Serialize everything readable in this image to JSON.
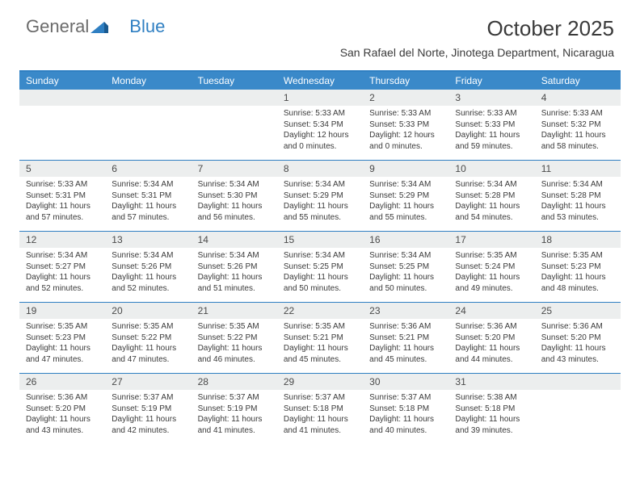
{
  "brand": {
    "part1": "General",
    "part2": "Blue"
  },
  "title": "October 2025",
  "location": "San Rafael del Norte, Jinotega Department, Nicaragua",
  "colors": {
    "accent": "#2f7fc2",
    "header_row": "#3a89c9",
    "day_head_bg": "#eceeee",
    "text": "#3a3a3a",
    "logo_gray": "#6b6b6b"
  },
  "dow": [
    "Sunday",
    "Monday",
    "Tuesday",
    "Wednesday",
    "Thursday",
    "Friday",
    "Saturday"
  ],
  "weeks": [
    [
      null,
      null,
      null,
      {
        "n": "1",
        "sr": "5:33 AM",
        "ss": "5:34 PM",
        "dl": "12 hours and 0 minutes."
      },
      {
        "n": "2",
        "sr": "5:33 AM",
        "ss": "5:33 PM",
        "dl": "12 hours and 0 minutes."
      },
      {
        "n": "3",
        "sr": "5:33 AM",
        "ss": "5:33 PM",
        "dl": "11 hours and 59 minutes."
      },
      {
        "n": "4",
        "sr": "5:33 AM",
        "ss": "5:32 PM",
        "dl": "11 hours and 58 minutes."
      }
    ],
    [
      {
        "n": "5",
        "sr": "5:33 AM",
        "ss": "5:31 PM",
        "dl": "11 hours and 57 minutes."
      },
      {
        "n": "6",
        "sr": "5:34 AM",
        "ss": "5:31 PM",
        "dl": "11 hours and 57 minutes."
      },
      {
        "n": "7",
        "sr": "5:34 AM",
        "ss": "5:30 PM",
        "dl": "11 hours and 56 minutes."
      },
      {
        "n": "8",
        "sr": "5:34 AM",
        "ss": "5:29 PM",
        "dl": "11 hours and 55 minutes."
      },
      {
        "n": "9",
        "sr": "5:34 AM",
        "ss": "5:29 PM",
        "dl": "11 hours and 55 minutes."
      },
      {
        "n": "10",
        "sr": "5:34 AM",
        "ss": "5:28 PM",
        "dl": "11 hours and 54 minutes."
      },
      {
        "n": "11",
        "sr": "5:34 AM",
        "ss": "5:28 PM",
        "dl": "11 hours and 53 minutes."
      }
    ],
    [
      {
        "n": "12",
        "sr": "5:34 AM",
        "ss": "5:27 PM",
        "dl": "11 hours and 52 minutes."
      },
      {
        "n": "13",
        "sr": "5:34 AM",
        "ss": "5:26 PM",
        "dl": "11 hours and 52 minutes."
      },
      {
        "n": "14",
        "sr": "5:34 AM",
        "ss": "5:26 PM",
        "dl": "11 hours and 51 minutes."
      },
      {
        "n": "15",
        "sr": "5:34 AM",
        "ss": "5:25 PM",
        "dl": "11 hours and 50 minutes."
      },
      {
        "n": "16",
        "sr": "5:34 AM",
        "ss": "5:25 PM",
        "dl": "11 hours and 50 minutes."
      },
      {
        "n": "17",
        "sr": "5:35 AM",
        "ss": "5:24 PM",
        "dl": "11 hours and 49 minutes."
      },
      {
        "n": "18",
        "sr": "5:35 AM",
        "ss": "5:23 PM",
        "dl": "11 hours and 48 minutes."
      }
    ],
    [
      {
        "n": "19",
        "sr": "5:35 AM",
        "ss": "5:23 PM",
        "dl": "11 hours and 47 minutes."
      },
      {
        "n": "20",
        "sr": "5:35 AM",
        "ss": "5:22 PM",
        "dl": "11 hours and 47 minutes."
      },
      {
        "n": "21",
        "sr": "5:35 AM",
        "ss": "5:22 PM",
        "dl": "11 hours and 46 minutes."
      },
      {
        "n": "22",
        "sr": "5:35 AM",
        "ss": "5:21 PM",
        "dl": "11 hours and 45 minutes."
      },
      {
        "n": "23",
        "sr": "5:36 AM",
        "ss": "5:21 PM",
        "dl": "11 hours and 45 minutes."
      },
      {
        "n": "24",
        "sr": "5:36 AM",
        "ss": "5:20 PM",
        "dl": "11 hours and 44 minutes."
      },
      {
        "n": "25",
        "sr": "5:36 AM",
        "ss": "5:20 PM",
        "dl": "11 hours and 43 minutes."
      }
    ],
    [
      {
        "n": "26",
        "sr": "5:36 AM",
        "ss": "5:20 PM",
        "dl": "11 hours and 43 minutes."
      },
      {
        "n": "27",
        "sr": "5:37 AM",
        "ss": "5:19 PM",
        "dl": "11 hours and 42 minutes."
      },
      {
        "n": "28",
        "sr": "5:37 AM",
        "ss": "5:19 PM",
        "dl": "11 hours and 41 minutes."
      },
      {
        "n": "29",
        "sr": "5:37 AM",
        "ss": "5:18 PM",
        "dl": "11 hours and 41 minutes."
      },
      {
        "n": "30",
        "sr": "5:37 AM",
        "ss": "5:18 PM",
        "dl": "11 hours and 40 minutes."
      },
      {
        "n": "31",
        "sr": "5:38 AM",
        "ss": "5:18 PM",
        "dl": "11 hours and 39 minutes."
      },
      null
    ]
  ],
  "labels": {
    "sunrise": "Sunrise:",
    "sunset": "Sunset:",
    "daylight": "Daylight:"
  }
}
